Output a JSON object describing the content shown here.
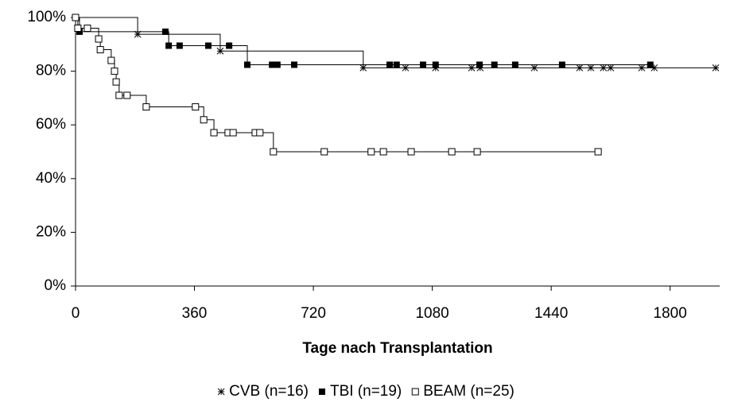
{
  "chart_data": {
    "type": "step",
    "xlabel": "Tage nach Transplantation",
    "xlim": [
      0,
      1950
    ],
    "xticks": [
      0,
      360,
      720,
      1080,
      1440,
      1800
    ],
    "ylim": [
      0,
      100
    ],
    "yticks": [
      {
        "value": 0,
        "label": "0%"
      },
      {
        "value": 20,
        "label": "20%"
      },
      {
        "value": 40,
        "label": "40%"
      },
      {
        "value": 60,
        "label": "60%"
      },
      {
        "value": 80,
        "label": "80%"
      },
      {
        "value": 100,
        "label": "100%"
      }
    ],
    "grid": false,
    "legend": "bottom",
    "series": [
      {
        "name": "CVB (n=16)",
        "marker": "asterisk",
        "color": "#000000",
        "x": [
          0,
          188,
          438,
          871,
          999,
          1090,
          1199,
          1225,
          1389,
          1526,
          1560,
          1598,
          1620,
          1714,
          1752,
          1938
        ],
        "values": [
          100,
          93.75,
          87.5,
          81.25,
          81.25,
          81.25,
          81.25,
          81.25,
          81.25,
          81.25,
          81.25,
          81.25,
          81.25,
          81.25,
          81.25,
          81.25
        ]
      },
      {
        "name": "TBI (n=19)",
        "marker": "filled-square",
        "color": "#000000",
        "x": [
          0,
          12,
          272,
          282,
          315,
          402,
          465,
          520,
          595,
          607,
          611,
          662,
          951,
          972,
          1052,
          1090,
          1223,
          1268,
          1331,
          1473,
          1740
        ],
        "values": [
          100,
          94.7,
          94.7,
          89.5,
          89.5,
          89.5,
          89.5,
          82.4,
          82.4,
          82.4,
          82.4,
          82.4,
          82.4,
          82.4,
          82.4,
          82.4,
          82.4,
          82.4,
          82.4,
          82.4,
          82.4
        ]
      },
      {
        "name": "BEAM (n=25)",
        "marker": "open-square",
        "color": "#000000",
        "x": [
          0,
          7,
          36,
          70,
          75,
          108,
          118,
          123,
          132,
          156,
          214,
          363,
          388,
          419,
          462,
          477,
          544,
          558,
          599,
          753,
          895,
          932,
          1016,
          1139,
          1216,
          1582
        ],
        "values": [
          100,
          96,
          96,
          92,
          88,
          84,
          80,
          76,
          71,
          71,
          66.7,
          66.7,
          61.9,
          57.1,
          57.1,
          57.1,
          57.1,
          57.1,
          50,
          50,
          50,
          50,
          50,
          50,
          50,
          50
        ]
      }
    ]
  }
}
